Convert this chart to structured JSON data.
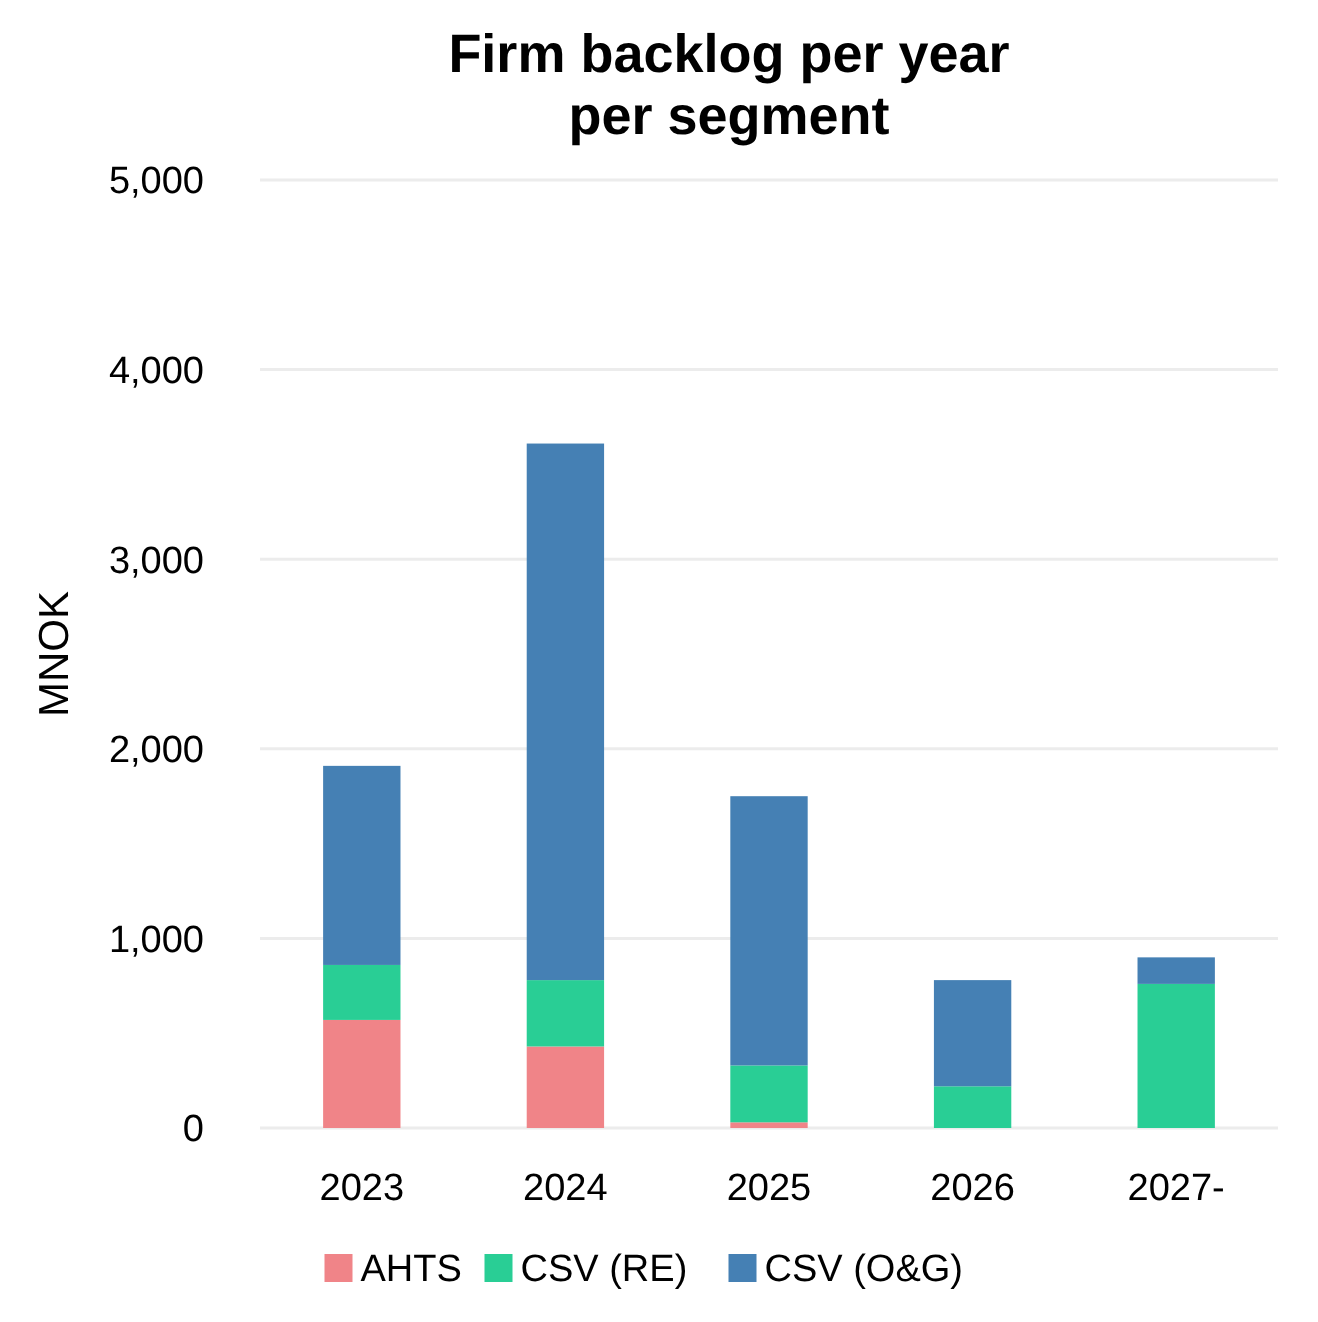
{
  "chart_data": {
    "type": "bar",
    "title": "Firm backlog per year per segment",
    "ylabel": "MNOK",
    "categories": [
      "2023",
      "2024",
      "2025",
      "2026",
      "2027-"
    ],
    "stacked": true,
    "series": [
      {
        "name": "AHTS",
        "color": "#f08488",
        "values": [
          570,
          430,
          30,
          0,
          0
        ]
      },
      {
        "name": "CSV (RE)",
        "color": "#29ce95",
        "values": [
          290,
          350,
          300,
          220,
          760
        ]
      },
      {
        "name": "CSV (O&G)",
        "color": "#4580b4",
        "values": [
          1050,
          2830,
          1420,
          560,
          140
        ]
      }
    ],
    "ylim": [
      0,
      5000
    ],
    "yticks": [
      {
        "value": 0,
        "label": "0"
      },
      {
        "value": 1000,
        "label": "1,000"
      },
      {
        "value": 2000,
        "label": "2,000"
      },
      {
        "value": 3000,
        "label": "3,000"
      },
      {
        "value": 4000,
        "label": "4,000"
      },
      {
        "value": 5000,
        "label": "5,000"
      }
    ],
    "grid": "y",
    "legend": "bottom"
  }
}
